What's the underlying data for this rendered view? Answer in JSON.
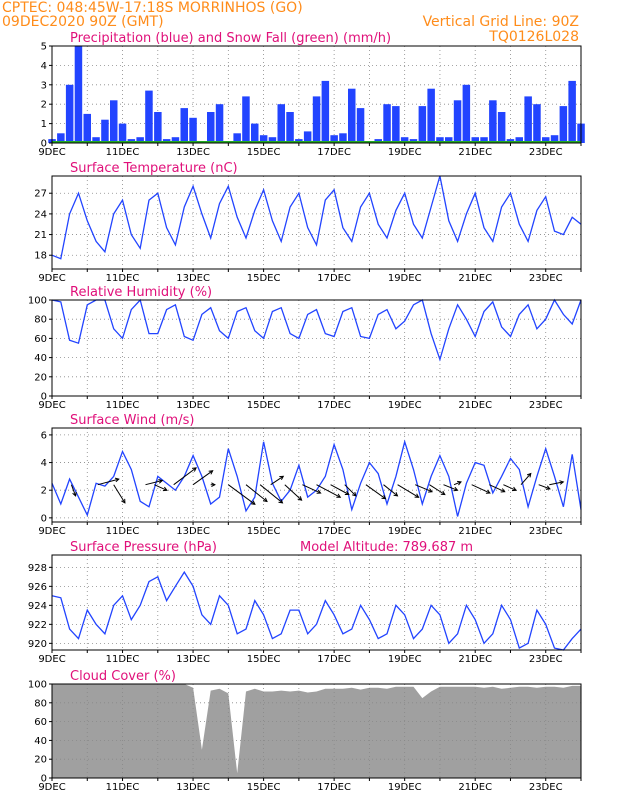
{
  "header": {
    "left_line1": "CPTEC:  048:45W-17:18S  MORRINHOS (GO)",
    "left_line2": "09DEC2020 90Z (GMT)",
    "right_line1": "Vertical Grid Line: 90Z",
    "right_line2": "TQ0126L028"
  },
  "x_tick_labels": [
    "9DEC",
    "11DEC",
    "13DEC",
    "15DEC",
    "17DEC",
    "19DEC",
    "21DEC",
    "23DEC"
  ],
  "chart_data": [
    {
      "id": "precip",
      "type": "bar",
      "title": "Precipitation (blue) and Snow Fall (green) (mm/h)",
      "ylim": [
        0,
        5
      ],
      "yticks": [
        0,
        1,
        2,
        3,
        4,
        5
      ],
      "grid": true,
      "colors": {
        "precip": "#2244ff",
        "snow": "#22aa22"
      },
      "x_days": [
        0,
        0.25,
        0.5,
        0.75,
        1,
        1.25,
        1.5,
        1.75,
        2,
        2.25,
        2.5,
        2.75,
        3,
        3.25,
        3.5,
        3.75,
        4,
        4.25,
        4.5,
        4.75,
        5,
        5.25,
        5.5,
        5.75,
        6,
        6.25,
        6.5,
        6.75,
        7,
        7.25,
        7.5,
        7.75,
        8,
        8.25,
        8.5,
        8.75,
        9,
        9.25,
        9.5,
        9.75,
        10,
        10.25,
        10.5,
        10.75,
        11,
        11.25,
        11.5,
        11.75,
        12,
        12.25,
        12.5,
        12.75,
        13,
        13.25,
        13.5,
        13.75,
        14,
        14.25,
        14.5,
        14.75,
        15
      ],
      "values": [
        0.2,
        0.5,
        3.0,
        5.0,
        1.5,
        0.3,
        1.2,
        2.2,
        1.0,
        0.2,
        0.3,
        2.7,
        1.6,
        0.2,
        0.3,
        1.8,
        1.3,
        0.1,
        1.6,
        2.0,
        0.1,
        0.5,
        2.4,
        1.0,
        0.4,
        0.3,
        2.0,
        1.6,
        0.2,
        0.6,
        2.4,
        3.2,
        0.4,
        0.5,
        2.8,
        1.8,
        0.1,
        0.2,
        2.0,
        1.9,
        0.3,
        0.2,
        1.9,
        2.8,
        0.3,
        0.3,
        2.2,
        3.0,
        0.3,
        0.3,
        2.2,
        1.6,
        0.2,
        0.3,
        2.4,
        2.0,
        0.3,
        0.4,
        1.9,
        3.2,
        1.0
      ]
    },
    {
      "id": "temp",
      "type": "line",
      "title": "Surface Temperature (nC)",
      "ylim": [
        16,
        29.5
      ],
      "yticks": [
        18,
        21,
        24,
        27
      ],
      "grid": true,
      "color": "#2244ff",
      "x_days": [
        0,
        0.25,
        0.5,
        0.75,
        1,
        1.25,
        1.5,
        1.75,
        2,
        2.25,
        2.5,
        2.75,
        3,
        3.25,
        3.5,
        3.75,
        4,
        4.25,
        4.5,
        4.75,
        5,
        5.25,
        5.5,
        5.75,
        6,
        6.25,
        6.5,
        6.75,
        7,
        7.25,
        7.5,
        7.75,
        8,
        8.25,
        8.5,
        8.75,
        9,
        9.25,
        9.5,
        9.75,
        10,
        10.25,
        10.5,
        10.75,
        11,
        11.25,
        11.5,
        11.75,
        12,
        12.25,
        12.5,
        12.75,
        13,
        13.25,
        13.5,
        13.75,
        14,
        14.25,
        14.5,
        14.75,
        15
      ],
      "values": [
        18.0,
        17.5,
        24.0,
        27.0,
        23.0,
        20.0,
        18.5,
        24.0,
        26.0,
        21.0,
        19.0,
        26.0,
        27.0,
        22.0,
        19.5,
        25.0,
        28.0,
        24.0,
        20.5,
        25.5,
        28.0,
        23.5,
        20.5,
        24.5,
        27.5,
        23.0,
        20.0,
        25.0,
        27.0,
        22.0,
        19.5,
        26.0,
        27.5,
        22.0,
        20.0,
        25.0,
        27.0,
        22.5,
        20.5,
        24.5,
        27.0,
        22.5,
        20.5,
        25.0,
        29.5,
        23.0,
        20.0,
        24.0,
        27.0,
        22.0,
        20.0,
        25.0,
        27.0,
        22.5,
        20.0,
        24.5,
        26.5,
        21.5,
        21.0,
        23.5,
        22.5
      ]
    },
    {
      "id": "rh",
      "type": "line",
      "title": "Relative Humidity (%)",
      "ylim": [
        0,
        100
      ],
      "yticks": [
        0,
        20,
        40,
        60,
        80,
        100
      ],
      "grid": true,
      "color": "#2244ff",
      "x_days": [
        0,
        0.25,
        0.5,
        0.75,
        1,
        1.25,
        1.5,
        1.75,
        2,
        2.25,
        2.5,
        2.75,
        3,
        3.25,
        3.5,
        3.75,
        4,
        4.25,
        4.5,
        4.75,
        5,
        5.25,
        5.5,
        5.75,
        6,
        6.25,
        6.5,
        6.75,
        7,
        7.25,
        7.5,
        7.75,
        8,
        8.25,
        8.5,
        8.75,
        9,
        9.25,
        9.5,
        9.75,
        10,
        10.25,
        10.5,
        10.75,
        11,
        11.25,
        11.5,
        11.75,
        12,
        12.25,
        12.5,
        12.75,
        13,
        13.25,
        13.5,
        13.75,
        14,
        14.25,
        14.5,
        14.75,
        15
      ],
      "values": [
        100,
        98,
        58,
        55,
        95,
        100,
        100,
        70,
        60,
        90,
        100,
        65,
        65,
        90,
        95,
        62,
        58,
        85,
        92,
        68,
        60,
        88,
        92,
        68,
        60,
        88,
        92,
        65,
        60,
        85,
        90,
        65,
        62,
        88,
        92,
        62,
        60,
        85,
        90,
        70,
        78,
        95,
        100,
        65,
        38,
        70,
        95,
        80,
        62,
        88,
        98,
        72,
        62,
        85,
        95,
        70,
        80,
        100,
        85,
        75,
        100
      ]
    },
    {
      "id": "wind",
      "type": "line",
      "title": "Surface Wind (m/s)",
      "ylim": [
        -0.3,
        6.5
      ],
      "yticks": [
        0,
        2,
        4,
        6
      ],
      "grid": true,
      "color": "#2244ff",
      "x_days": [
        0,
        0.25,
        0.5,
        0.75,
        1,
        1.25,
        1.5,
        1.75,
        2,
        2.25,
        2.5,
        2.75,
        3,
        3.25,
        3.5,
        3.75,
        4,
        4.25,
        4.5,
        4.75,
        5,
        5.25,
        5.5,
        5.75,
        6,
        6.25,
        6.5,
        6.75,
        7,
        7.25,
        7.5,
        7.75,
        8,
        8.25,
        8.5,
        8.75,
        9,
        9.25,
        9.5,
        9.75,
        10,
        10.25,
        10.5,
        10.75,
        11,
        11.25,
        11.5,
        11.75,
        12,
        12.25,
        12.5,
        12.75,
        13,
        13.25,
        13.5,
        13.75,
        14,
        14.25,
        14.5,
        14.75,
        15
      ],
      "values": [
        2.5,
        1.0,
        2.8,
        1.5,
        0.2,
        2.5,
        2.3,
        3.0,
        4.8,
        3.5,
        1.2,
        0.8,
        3.0,
        2.5,
        2.0,
        3.0,
        4.5,
        3.0,
        1.0,
        1.5,
        5.0,
        3.0,
        0.5,
        1.5,
        5.5,
        2.5,
        1.2,
        2.0,
        3.8,
        1.5,
        2.0,
        3.0,
        5.3,
        3.5,
        0.6,
        2.5,
        4.0,
        3.2,
        1.0,
        3.0,
        5.5,
        3.5,
        1.0,
        3.0,
        4.5,
        3.0,
        0.1,
        2.5,
        4.0,
        3.8,
        1.8,
        3.0,
        4.3,
        3.5,
        0.8,
        3.0,
        5.0,
        3.0,
        0.8,
        4.6,
        0.6
      ],
      "arrow_days": [
        0.55,
        1.3,
        1.75,
        2.65,
        2.9,
        3.45,
        4.0,
        4.5,
        5.0,
        5.5,
        5.9,
        6.2,
        6.6,
        7.1,
        7.5,
        7.9,
        8.3,
        8.9,
        9.4,
        9.8,
        10.3,
        10.7,
        11.1,
        11.4,
        11.9,
        12.4,
        12.8,
        13.3,
        13.8,
        14.1
      ],
      "arrow_u": [
        0.3,
        1.5,
        0.8,
        1.2,
        0.9,
        1.6,
        1.4,
        0.3,
        1.9,
        1.5,
        1.6,
        0.9,
        1.2,
        1.3,
        1.7,
        1.3,
        0.8,
        1.4,
        1.0,
        1.5,
        1.2,
        1.1,
        1.0,
        0.5,
        1.3,
        1.1,
        0.9,
        0.7,
        0.8,
        1.0
      ],
      "arrow_v": [
        -0.8,
        0.4,
        -1.3,
        0.3,
        -0.4,
        1.2,
        1.0,
        0.0,
        -1.4,
        -1.2,
        -1.3,
        0.6,
        -1.1,
        -0.6,
        -0.9,
        -0.7,
        -0.8,
        -1.0,
        -0.8,
        -0.9,
        -0.5,
        -0.7,
        -0.4,
        0.2,
        -0.6,
        -0.5,
        -0.4,
        0.8,
        -0.3,
        0.2
      ]
    },
    {
      "id": "pressure",
      "type": "line",
      "title": "Surface Pressure (hPa)",
      "subtitle": "Model Altitude: 789.687 m",
      "ylim": [
        919.3,
        929.3
      ],
      "yticks": [
        920,
        922,
        924,
        926,
        928
      ],
      "grid": true,
      "color": "#2244ff",
      "x_days": [
        0,
        0.25,
        0.5,
        0.75,
        1,
        1.25,
        1.5,
        1.75,
        2,
        2.25,
        2.5,
        2.75,
        3,
        3.25,
        3.5,
        3.75,
        4,
        4.25,
        4.5,
        4.75,
        5,
        5.25,
        5.5,
        5.75,
        6,
        6.25,
        6.5,
        6.75,
        7,
        7.25,
        7.5,
        7.75,
        8,
        8.25,
        8.5,
        8.75,
        9,
        9.25,
        9.5,
        9.75,
        10,
        10.25,
        10.5,
        10.75,
        11,
        11.25,
        11.5,
        11.75,
        12,
        12.25,
        12.5,
        12.75,
        13,
        13.25,
        13.5,
        13.75,
        14,
        14.25,
        14.5,
        14.75,
        15
      ],
      "values": [
        925.0,
        924.8,
        921.5,
        920.5,
        923.5,
        922.0,
        921.0,
        924.0,
        925.0,
        922.5,
        924.0,
        926.5,
        927.0,
        924.5,
        926.0,
        927.5,
        926.0,
        923.0,
        922.0,
        925.0,
        924.0,
        921.0,
        921.5,
        924.5,
        923.0,
        920.5,
        921.0,
        923.5,
        923.5,
        921.0,
        922.0,
        924.5,
        923.0,
        921.0,
        921.5,
        924.0,
        922.5,
        920.5,
        921.0,
        924.0,
        923.0,
        920.5,
        921.5,
        924.0,
        923.0,
        920.0,
        921.0,
        924.0,
        922.5,
        920.0,
        921.0,
        924.0,
        922.5,
        919.5,
        920.0,
        923.5,
        922.0,
        919.5,
        919.3,
        920.5,
        921.5
      ]
    },
    {
      "id": "cloud",
      "type": "area",
      "title": "Cloud Cover (%)",
      "ylim": [
        0,
        100
      ],
      "yticks": [
        0,
        20,
        40,
        60,
        80,
        100
      ],
      "grid": true,
      "color": "#a0a0a0",
      "x_days": [
        0,
        0.25,
        0.5,
        0.75,
        1,
        1.25,
        1.5,
        1.75,
        2,
        2.25,
        2.5,
        2.75,
        3,
        3.25,
        3.5,
        3.75,
        4,
        4.25,
        4.5,
        4.75,
        5,
        5.25,
        5.5,
        5.75,
        6,
        6.25,
        6.5,
        6.75,
        7,
        7.25,
        7.5,
        7.75,
        8,
        8.25,
        8.5,
        8.75,
        9,
        9.25,
        9.5,
        9.75,
        10,
        10.25,
        10.5,
        10.75,
        11,
        11.25,
        11.5,
        11.75,
        12,
        12.25,
        12.5,
        12.75,
        13,
        13.25,
        13.5,
        13.75,
        14,
        14.25,
        14.5,
        14.75,
        15
      ],
      "values": [
        100,
        100,
        100,
        100,
        100,
        100,
        100,
        100,
        100,
        100,
        100,
        100,
        100,
        100,
        100,
        100,
        96,
        30,
        93,
        95,
        90,
        5,
        92,
        95,
        92,
        92,
        93,
        92,
        93,
        91,
        92,
        95,
        95,
        95,
        96,
        94,
        96,
        96,
        95,
        97,
        97,
        97,
        85,
        92,
        97,
        97,
        97,
        97,
        97,
        96,
        97,
        95,
        96,
        97,
        97,
        96,
        97,
        97,
        96,
        98,
        98
      ]
    }
  ]
}
